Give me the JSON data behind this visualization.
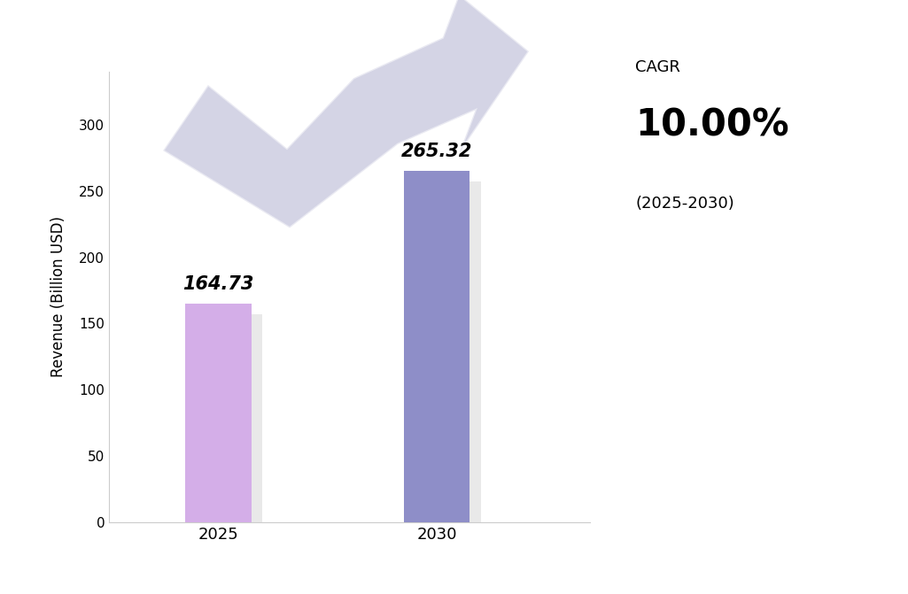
{
  "categories": [
    "2025",
    "2030"
  ],
  "values": [
    164.73,
    265.32
  ],
  "bar_colors": [
    "#D4AEE8",
    "#8E8EC8"
  ],
  "bar_labels": [
    "164.73",
    "265.32"
  ],
  "ylabel": "Revenue (Billion USD)",
  "ylim": [
    0,
    340
  ],
  "yticks": [
    0,
    50,
    100,
    150,
    200,
    250,
    300
  ],
  "cagr_label": "10.00%",
  "cagr_period": "(2025-2030)",
  "cagr_title": "CAGR",
  "background_color": "#FFFFFF",
  "bar_width": 0.3,
  "shadow_color": "#AAAAAA",
  "arrow_color": "#AAAACC",
  "arrow_alpha": 0.5
}
